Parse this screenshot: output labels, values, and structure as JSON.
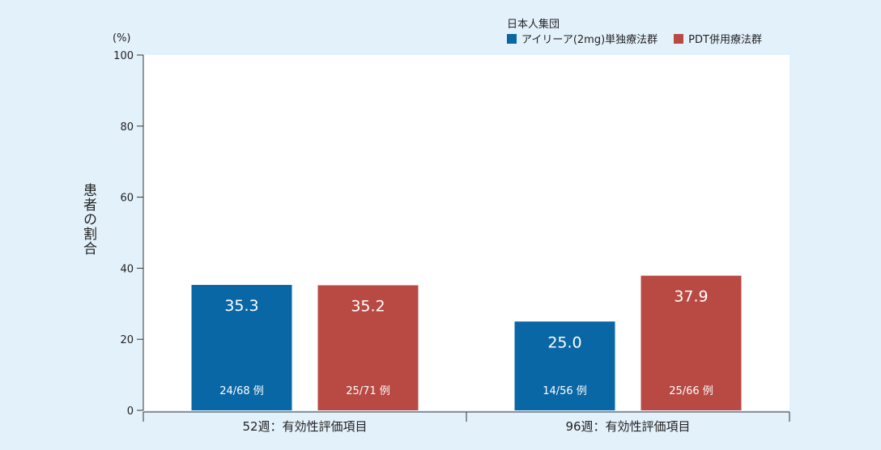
{
  "chart_data": {
    "type": "bar",
    "unit_label": "(%)",
    "ylabel": "患者の割合",
    "ylim": [
      0,
      100
    ],
    "yticks": [
      0,
      20,
      40,
      60,
      80,
      100
    ],
    "legend_title": "日本人集団",
    "legend_position": "top-right",
    "grid": false,
    "categories": [
      "52週：有効性評価項目",
      "96週：有効性評価項目"
    ],
    "series": [
      {
        "name": "アイリーア(2mg)単独療法群",
        "color": "#0a67a6",
        "values": [
          35.3,
          25.0
        ],
        "value_labels": [
          "35.3",
          "25.0"
        ],
        "n_labels": [
          "24/68 例",
          "14/56 例"
        ]
      },
      {
        "name": "PDT併用療法群",
        "color": "#b94a43",
        "values": [
          35.2,
          37.9
        ],
        "value_labels": [
          "35.2",
          "37.9"
        ],
        "n_labels": [
          "25/71 例",
          "25/66 例"
        ]
      }
    ]
  },
  "colors": {
    "background": "#e3f1fb",
    "plot_area": "#ffffff",
    "axis": "#333333"
  }
}
